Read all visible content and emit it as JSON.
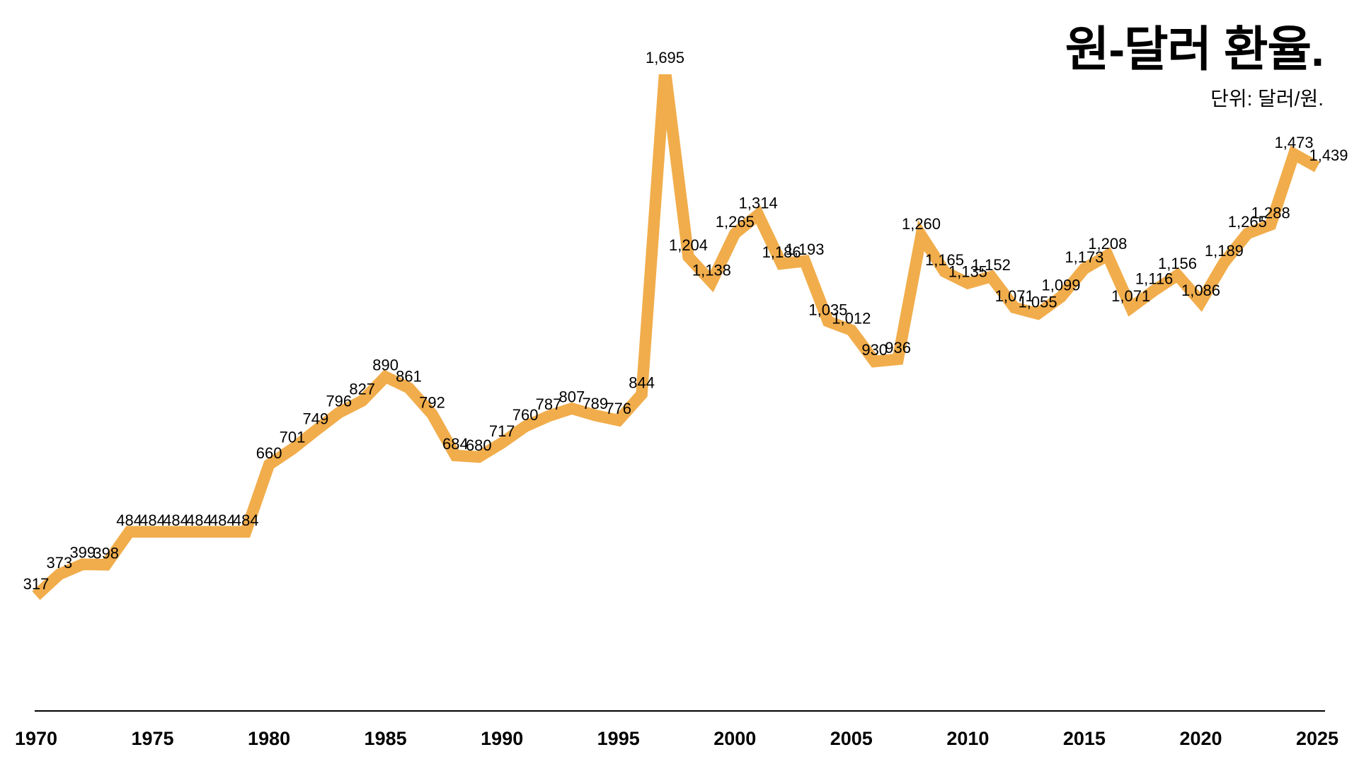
{
  "header": {
    "title": "원-달러 환율.",
    "subtitle": "단위: 달러/원."
  },
  "chart_data": {
    "type": "line",
    "title": "원-달러 환율.",
    "unit_label": "단위: 달러/원.",
    "grid": false,
    "legend": "none",
    "data_labels": true,
    "line_color": "#F1AD4B",
    "text_color": "#000000",
    "axis_color": "#000000",
    "background_color": "#FFFFFF",
    "xlim": [
      1970,
      2025
    ],
    "ylim": [
      27,
      1870
    ],
    "x_ticks": [
      1970,
      1975,
      1980,
      1985,
      1990,
      1995,
      2000,
      2005,
      2010,
      2015,
      2020,
      2025
    ],
    "series": [
      {
        "name": "원-달러 환율",
        "x": [
          1970,
          1971,
          1972,
          1973,
          1974,
          1975,
          1976,
          1977,
          1978,
          1979,
          1980,
          1981,
          1982,
          1983,
          1984,
          1985,
          1986,
          1987,
          1988,
          1989,
          1990,
          1991,
          1992,
          1993,
          1994,
          1995,
          1996,
          1997,
          1998,
          1999,
          2000,
          2001,
          2002,
          2003,
          2004,
          2005,
          2006,
          2007,
          2008,
          2009,
          2010,
          2011,
          2012,
          2013,
          2014,
          2015,
          2016,
          2017,
          2018,
          2019,
          2020,
          2021,
          2022,
          2023,
          2024,
          2025
        ],
        "values": [
          317,
          373,
          399,
          398,
          484,
          484,
          484,
          484,
          484,
          484,
          660,
          701,
          749,
          796,
          827,
          890,
          861,
          792,
          684,
          680,
          717,
          760,
          787,
          807,
          789,
          776,
          844,
          1695,
          1204,
          1138,
          1265,
          1314,
          1186,
          1193,
          1035,
          1012,
          930,
          936,
          1260,
          1165,
          1135,
          1152,
          1071,
          1055,
          1099,
          1173,
          1208,
          1071,
          1116,
          1156,
          1086,
          1189,
          1265,
          1288,
          1473,
          1439
        ]
      }
    ]
  }
}
